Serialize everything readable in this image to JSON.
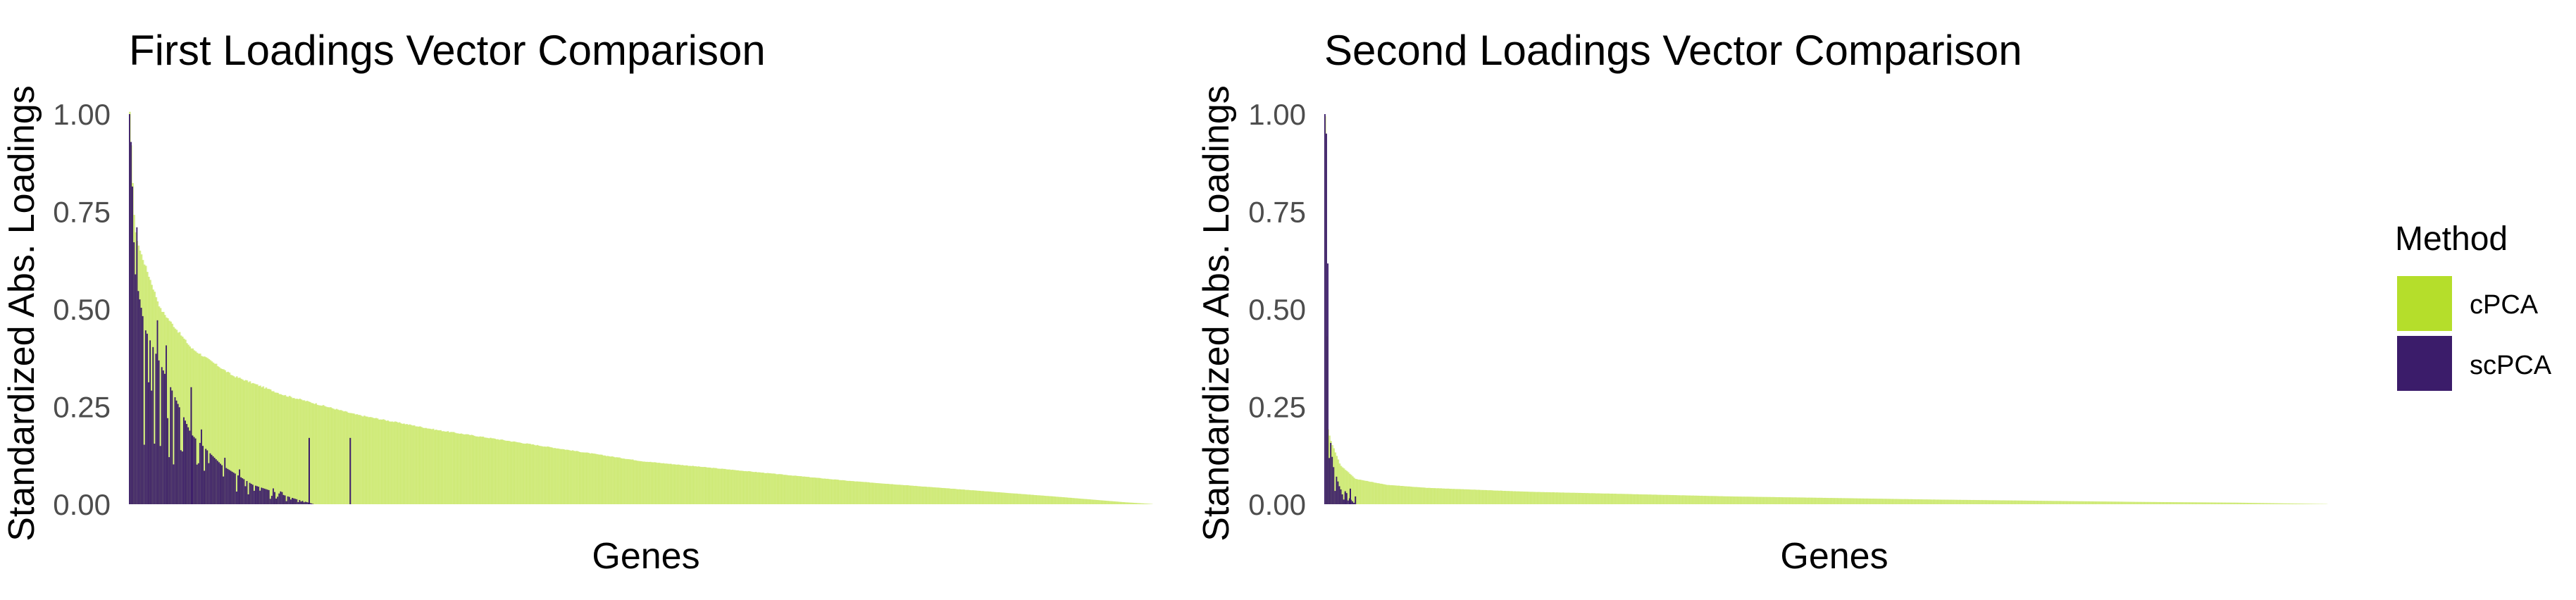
{
  "chart_data": [
    {
      "type": "bar",
      "title": "First Loadings Vector Comparison",
      "xlabel": "Genes",
      "ylabel": "Standardized Abs. Loadings",
      "ylim": [
        0,
        1
      ],
      "y_ticks": [
        "0.00",
        "0.25",
        "0.50",
        "0.75",
        "1.00"
      ],
      "x_ticks": [],
      "grid": false,
      "n_genes": 2000,
      "series": [
        {
          "name": "cPCA",
          "color": "#B5DE2B",
          "sorted_profile": [
            [
              0,
              1.0
            ],
            [
              0.005,
              0.7
            ],
            [
              0.01,
              0.65
            ],
            [
              0.03,
              0.5
            ],
            [
              0.06,
              0.4
            ],
            [
              0.1,
              0.33
            ],
            [
              0.15,
              0.28
            ],
            [
              0.22,
              0.23
            ],
            [
              0.3,
              0.19
            ],
            [
              0.4,
              0.15
            ],
            [
              0.5,
              0.11
            ],
            [
              0.6,
              0.085
            ],
            [
              0.7,
              0.06
            ],
            [
              0.8,
              0.04
            ],
            [
              0.9,
              0.02
            ],
            [
              0.97,
              0.005
            ],
            [
              1.0,
              0.0
            ]
          ]
        },
        {
          "name": "scPCA",
          "color": "#3B1C6A",
          "sorted_profile": [
            [
              0,
              1.0
            ],
            [
              0.002,
              0.9
            ],
            [
              0.005,
              0.6
            ],
            [
              0.015,
              0.45
            ],
            [
              0.04,
              0.3
            ],
            [
              0.06,
              0.18
            ],
            [
              0.09,
              0.1
            ],
            [
              0.12,
              0.05
            ],
            [
              0.16,
              0.015
            ],
            [
              0.18,
              0.0
            ]
          ],
          "outliers": [
            [
              0.175,
              0.17
            ],
            [
              0.215,
              0.17
            ],
            [
              0.06,
              0.3
            ]
          ]
        }
      ]
    },
    {
      "type": "bar",
      "title": "Second Loadings Vector Comparison",
      "xlabel": "Genes",
      "ylabel": "Standardized Abs. Loadings",
      "ylim": [
        0,
        1
      ],
      "y_ticks": [
        "0.00",
        "0.25",
        "0.50",
        "0.75",
        "1.00"
      ],
      "x_ticks": [],
      "grid": false,
      "n_genes": 2000,
      "series": [
        {
          "name": "cPCA",
          "color": "#B5DE2B",
          "sorted_profile": [
            [
              0,
              1.0
            ],
            [
              0.002,
              0.2
            ],
            [
              0.006,
              0.16
            ],
            [
              0.015,
              0.1
            ],
            [
              0.03,
              0.065
            ],
            [
              0.06,
              0.05
            ],
            [
              0.1,
              0.042
            ],
            [
              0.2,
              0.032
            ],
            [
              0.3,
              0.026
            ],
            [
              0.4,
              0.02
            ],
            [
              0.5,
              0.016
            ],
            [
              0.6,
              0.012
            ],
            [
              0.7,
              0.009
            ],
            [
              0.8,
              0.006
            ],
            [
              0.9,
              0.004
            ],
            [
              1.0,
              0.0
            ]
          ]
        },
        {
          "name": "scPCA",
          "color": "#3B1C6A",
          "sorted_profile": [
            [
              0,
              1.0
            ],
            [
              0.002,
              0.93
            ],
            [
              0.004,
              0.2
            ],
            [
              0.008,
              0.1
            ],
            [
              0.015,
              0.04
            ],
            [
              0.03,
              0.0
            ]
          ],
          "outliers": [
            [
              0.02,
              0.03
            ],
            [
              0.025,
              0.04
            ],
            [
              0.03,
              0.02
            ]
          ]
        }
      ]
    }
  ],
  "legend": {
    "title": "Method",
    "position": "right",
    "items": [
      {
        "label": "cPCA",
        "color": "#B5DE2B"
      },
      {
        "label": "scPCA",
        "color": "#3B1C6A"
      }
    ]
  }
}
